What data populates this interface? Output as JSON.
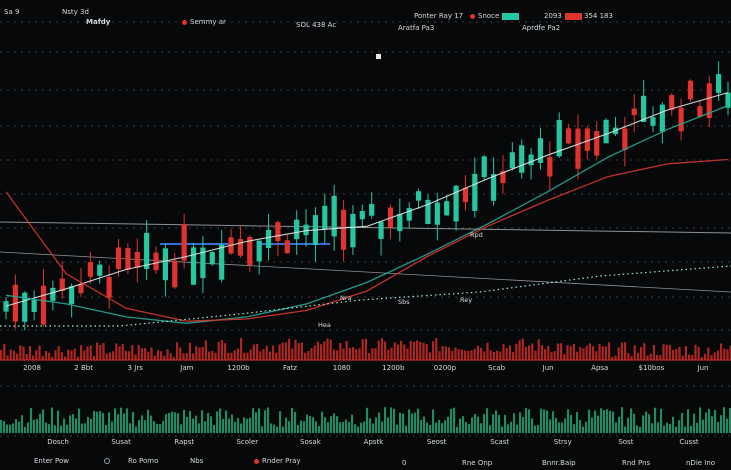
{
  "header": {
    "items": [
      {
        "text": "Sa 9"
      },
      {
        "text": "Nsty 3d"
      },
      {
        "text": "Mafdy"
      },
      {
        "text": "Semmy ar"
      },
      {
        "text": "SOL 438 Ac"
      },
      {
        "text": "Aratfa Pa3"
      },
      {
        "text": "Ponter Ray 17"
      },
      {
        "text": "Snoce"
      },
      {
        "text": "Aprdfe Pa2"
      },
      {
        "text": "2093"
      },
      {
        "text": "354 183"
      }
    ],
    "colors": {
      "up": "#26c6a0",
      "down": "#e0332d",
      "marker": "#e0332d"
    }
  },
  "chart_data": {
    "type": "line",
    "title": "",
    "x_tick_labels": [
      "2008",
      "2 Bbt",
      "3 Jrs",
      "Jam",
      "1200b",
      "Fatz",
      "1080",
      "1200b",
      "0200p",
      "Scab",
      "Jun",
      "Apsa",
      "$10bos",
      "Jun"
    ],
    "volume_tick_labels": [
      "Dosch",
      "Susat",
      "Rapst",
      "Scoler",
      "Sosak",
      "Apstk",
      "Seost",
      "Scast",
      "Strsy",
      "Sost",
      "Cusst"
    ],
    "inline_labels": [
      "Hea",
      "Nra",
      "Sbs",
      "Rey",
      "Rpd"
    ],
    "series": [
      {
        "name": "",
        "color": "#e2e8ea",
        "values": [
          25,
          33,
          42,
          48,
          55,
          60,
          62,
          72,
          84,
          95,
          105,
          116,
          124
        ]
      },
      {
        "name": "",
        "color": "#2aa898",
        "values": [
          30,
          26,
          20,
          17,
          20,
          26,
          36,
          49,
          63,
          78,
          94,
          107,
          118
        ]
      },
      {
        "name": "",
        "color": "#d6362f",
        "values": [
          78,
          40,
          24,
          18,
          19,
          23,
          32,
          48,
          62,
          74,
          85,
          91,
          93
        ]
      }
    ],
    "up_color": "#26c6a0",
    "down_color": "#e0332d",
    "grid": true,
    "price_range": [
      0,
      160
    ],
    "volume_up_color": "#1f9c70",
    "volume_down_color": "#c02a26"
  },
  "bottom_bar": {
    "items": [
      "Enter Pow",
      "Ro Pomo",
      "Nbs",
      "Rnder Pray",
      "0",
      "Rne Onp",
      "Bnnr.Baip",
      "Rnd Pns",
      "nDie Ino"
    ],
    "marker_color": "#e0332d"
  }
}
